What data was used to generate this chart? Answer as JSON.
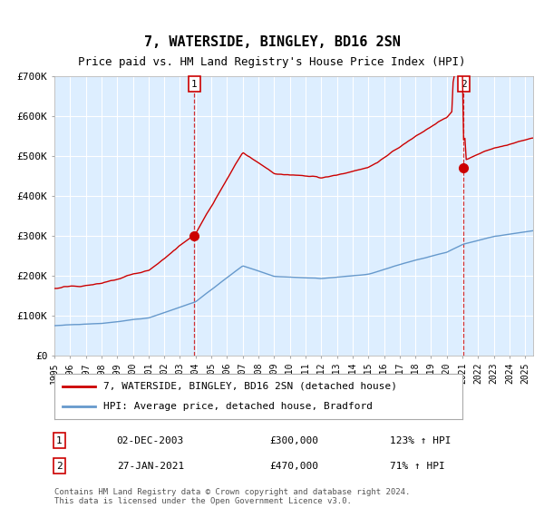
{
  "title": "7, WATERSIDE, BINGLEY, BD16 2SN",
  "subtitle": "Price paid vs. HM Land Registry's House Price Index (HPI)",
  "legend_line1": "7, WATERSIDE, BINGLEY, BD16 2SN (detached house)",
  "legend_line2": "HPI: Average price, detached house, Bradford",
  "sale1_date": "02-DEC-2003",
  "sale1_price": "£300,000",
  "sale1_hpi": "123% ↑ HPI",
  "sale2_date": "27-JAN-2021",
  "sale2_price": "£470,000",
  "sale2_hpi": "71% ↑ HPI",
  "footer": "Contains HM Land Registry data © Crown copyright and database right 2024.\nThis data is licensed under the Open Government Licence v3.0.",
  "red_color": "#cc0000",
  "blue_color": "#6699cc",
  "bg_color": "#ddeeff",
  "grid_color": "#ffffff",
  "outer_bg": "#ffffff",
  "ylim": [
    0,
    700000
  ],
  "xlim_start": 1995.0,
  "xlim_end": 2025.5,
  "sale1_x": 2003.92,
  "sale1_y": 300000,
  "sale2_x": 2021.07,
  "sale2_y": 470000
}
